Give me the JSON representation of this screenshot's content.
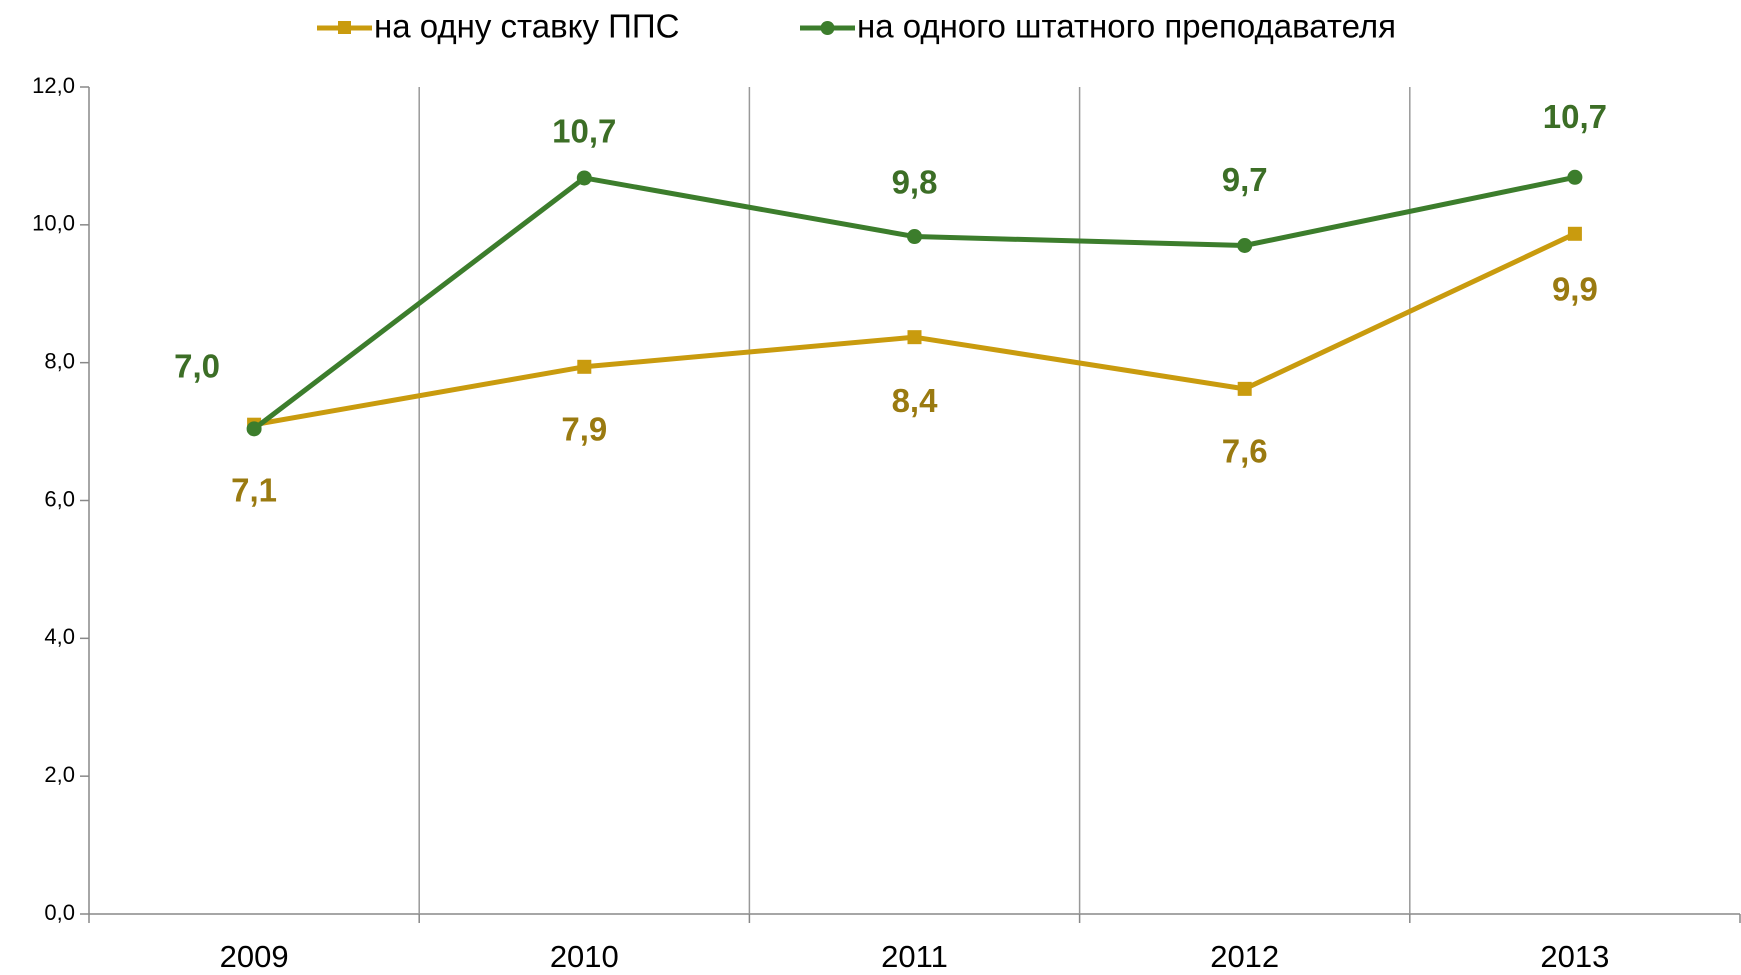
{
  "chart_data": {
    "type": "line",
    "categories": [
      "2009",
      "2010",
      "2011",
      "2012",
      "2013"
    ],
    "series": [
      {
        "name": "на одну ставку ППС",
        "color": "#c99b0e",
        "marker": "square",
        "values": [
          7.1,
          7.94,
          8.37,
          7.62,
          9.87
        ],
        "value_labels": [
          "7,1",
          "7,9",
          "8,4",
          "7,6",
          "9,9"
        ],
        "label_color": "#9a7a10"
      },
      {
        "name": "на одного штатного преподавателя",
        "color": "#3c7d2c",
        "marker": "circle",
        "values": [
          7.04,
          10.68,
          9.83,
          9.7,
          10.69
        ],
        "value_labels": [
          "7,0",
          "10,7",
          "9,8",
          "9,7",
          "10,7"
        ],
        "label_color": "#3c6e26"
      }
    ],
    "ylim": [
      0,
      12
    ],
    "yticks": [
      {
        "value": 0,
        "label": "0,0"
      },
      {
        "value": 2,
        "label": "2,0"
      },
      {
        "value": 4,
        "label": "4,0"
      },
      {
        "value": 6,
        "label": "6,0"
      },
      {
        "value": 8,
        "label": "8,0"
      },
      {
        "value": 10,
        "label": "10,0"
      },
      {
        "value": 12,
        "label": "12,0"
      }
    ],
    "legend": "top"
  }
}
